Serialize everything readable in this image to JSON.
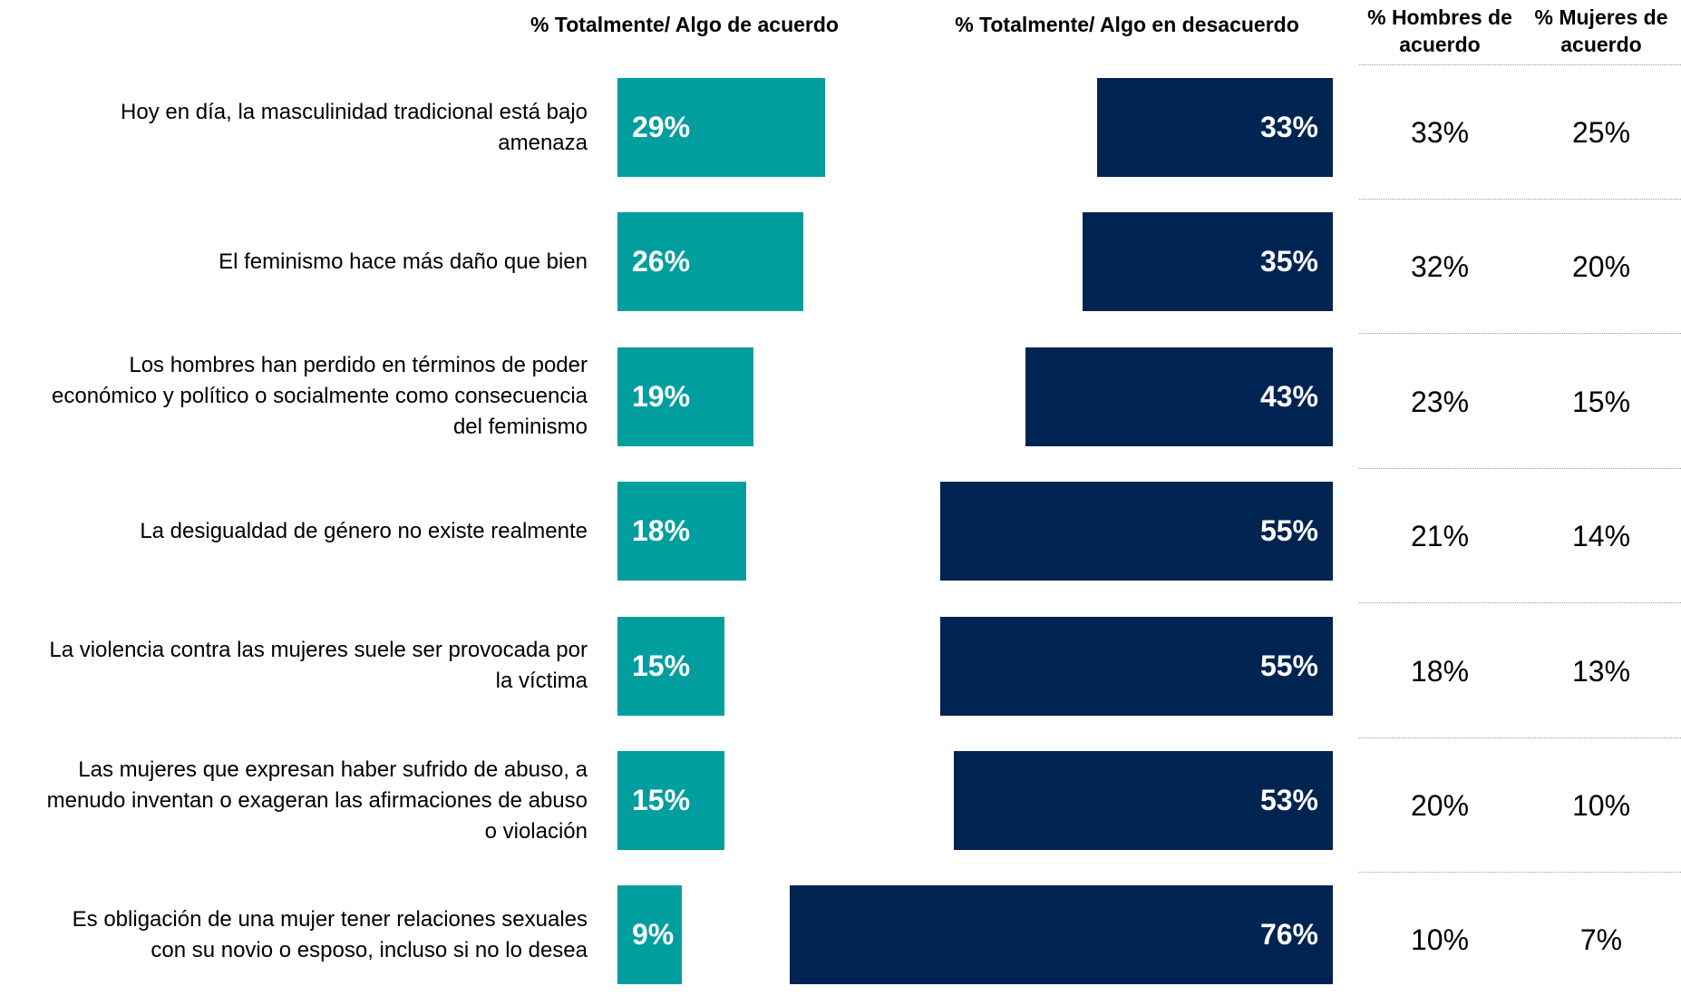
{
  "chart_data": {
    "type": "bar",
    "categories": [
      "Hoy en día, la masculinidad tradicional está bajo amenaza",
      "El feminismo hace más daño que bien",
      "Los hombres han perdido en términos de poder económico y político o socialmente como consecuencia del feminismo",
      "La desigualdad de género no existe realmente",
      "La violencia contra las mujeres suele ser provocada por la víctima",
      "Las mujeres que expresan haber sufrido de abuso, a menudo inventan o exageran las afirmaciones de abuso o violación",
      "Es obligación de una mujer tener relaciones sexuales con su novio o esposo, incluso si no lo desea"
    ],
    "series": [
      {
        "name": "% Totalmente/ Algo de acuerdo",
        "color": "#009e9e",
        "values": [
          29,
          26,
          19,
          18,
          15,
          15,
          9
        ],
        "value_labels": [
          "29%",
          "26%",
          "19%",
          "18%",
          "15%",
          "15%",
          "9%"
        ]
      },
      {
        "name": "% Totalmente/ Algo en desacuerdo",
        "color": "#002452",
        "values": [
          33,
          35,
          43,
          55,
          55,
          53,
          76
        ],
        "value_labels": [
          "33%",
          "35%",
          "43%",
          "55%",
          "55%",
          "53%",
          "76%"
        ]
      }
    ],
    "table_columns": [
      {
        "name": "% Hombres de acuerdo",
        "cells": [
          "33%",
          "32%",
          "23%",
          "21%",
          "18%",
          "20%",
          "10%"
        ]
      },
      {
        "name": "% Mujeres de acuerdo",
        "cells": [
          "25%",
          "20%",
          "15%",
          "14%",
          "13%",
          "10%",
          "7%"
        ]
      }
    ]
  }
}
